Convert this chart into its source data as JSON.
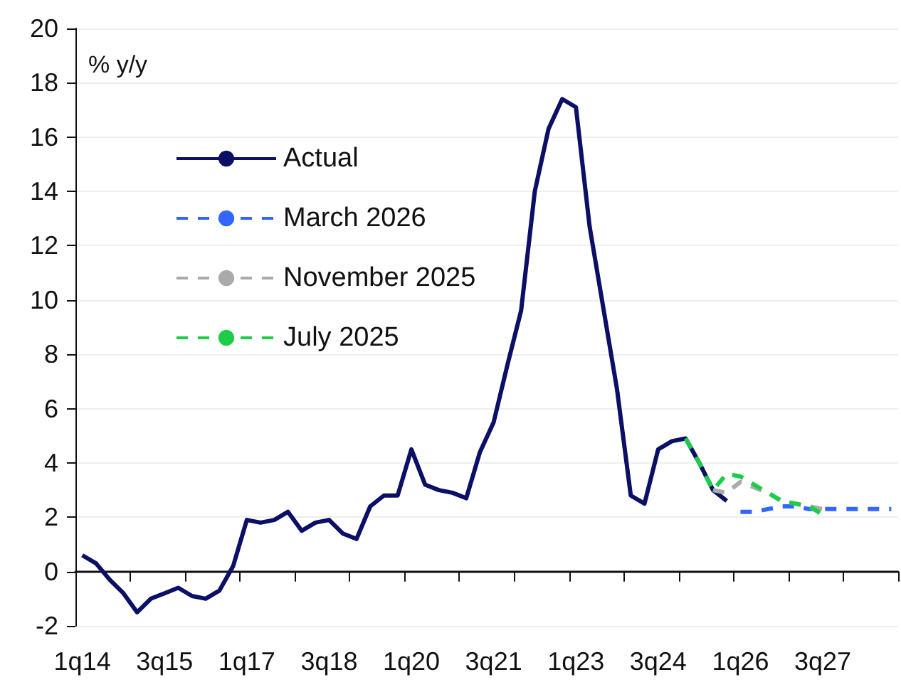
{
  "chart_data": {
    "type": "line",
    "ylabel": "% y/y",
    "categories": [
      "1q14",
      null,
      null,
      null,
      null,
      null,
      "3q15",
      null,
      null,
      null,
      null,
      null,
      "1q17",
      null,
      null,
      null,
      null,
      null,
      "3q18",
      null,
      null,
      null,
      null,
      null,
      "1q20",
      null,
      null,
      null,
      null,
      null,
      "3q21",
      null,
      null,
      null,
      null,
      null,
      "1q23",
      null,
      null,
      null,
      null,
      null,
      "3q24",
      null,
      null,
      null,
      null,
      null,
      "1q26",
      null,
      null,
      null,
      null,
      null,
      "3q27",
      null,
      null,
      null,
      null,
      null
    ],
    "series": [
      {
        "name": "Actual",
        "color": "#0b0f66",
        "line_style": "solid",
        "values": [
          0.6,
          0.3,
          -0.3,
          -0.8,
          -1.5,
          -1.0,
          -0.8,
          -0.6,
          -0.9,
          -1.0,
          -0.7,
          0.2,
          1.9,
          1.8,
          1.9,
          2.2,
          1.5,
          1.8,
          1.9,
          1.4,
          1.2,
          2.4,
          2.8,
          2.8,
          4.5,
          3.2,
          3.0,
          2.9,
          2.7,
          4.4,
          5.5,
          7.6,
          9.6,
          14.0,
          16.3,
          17.4,
          17.1,
          12.7,
          9.7,
          6.7,
          2.8,
          2.5,
          4.5,
          4.8,
          4.9,
          4.0,
          3.0,
          2.6,
          null,
          null,
          null,
          null,
          null,
          null,
          null,
          null,
          null,
          null,
          null,
          null
        ]
      },
      {
        "name": "March 2026",
        "color": "#3366ff",
        "line_style": "dashed",
        "values": [
          null,
          null,
          null,
          null,
          null,
          null,
          null,
          null,
          null,
          null,
          null,
          null,
          null,
          null,
          null,
          null,
          null,
          null,
          null,
          null,
          null,
          null,
          null,
          null,
          null,
          null,
          null,
          null,
          null,
          null,
          null,
          null,
          null,
          null,
          null,
          null,
          null,
          null,
          null,
          null,
          null,
          null,
          null,
          null,
          null,
          null,
          null,
          null,
          2.2,
          2.2,
          2.3,
          2.4,
          2.4,
          2.3,
          2.3,
          2.3,
          2.3,
          2.3,
          2.3,
          2.3
        ]
      },
      {
        "name": "November 2025",
        "color": "#aaaaaa",
        "line_style": "dashed",
        "values": [
          null,
          null,
          null,
          null,
          null,
          null,
          null,
          null,
          null,
          null,
          null,
          null,
          null,
          null,
          null,
          null,
          null,
          null,
          null,
          null,
          null,
          null,
          null,
          null,
          null,
          null,
          null,
          null,
          null,
          null,
          null,
          null,
          null,
          null,
          null,
          null,
          null,
          null,
          null,
          null,
          null,
          null,
          null,
          null,
          null,
          null,
          3.0,
          2.9,
          3.3,
          3.1,
          2.9,
          2.6,
          2.5,
          2.4,
          2.3,
          null,
          null,
          null,
          null,
          null
        ]
      },
      {
        "name": "July 2025",
        "color": "#1ecc4a",
        "line_style": "dashed",
        "values": [
          null,
          null,
          null,
          null,
          null,
          null,
          null,
          null,
          null,
          null,
          null,
          null,
          null,
          null,
          null,
          null,
          null,
          null,
          null,
          null,
          null,
          null,
          null,
          null,
          null,
          null,
          null,
          null,
          null,
          null,
          null,
          null,
          null,
          null,
          null,
          null,
          null,
          null,
          null,
          null,
          null,
          null,
          null,
          null,
          4.9,
          4.0,
          3.0,
          3.6,
          3.5,
          3.2,
          2.9,
          2.6,
          2.5,
          2.4,
          2.1,
          null,
          null,
          null,
          null,
          null
        ]
      }
    ],
    "ylim": [
      -2,
      20
    ],
    "yticks": [
      -2,
      0,
      2,
      4,
      6,
      8,
      10,
      12,
      14,
      16,
      18,
      20
    ],
    "grid": "y",
    "legend": "top left",
    "marker": "none"
  }
}
